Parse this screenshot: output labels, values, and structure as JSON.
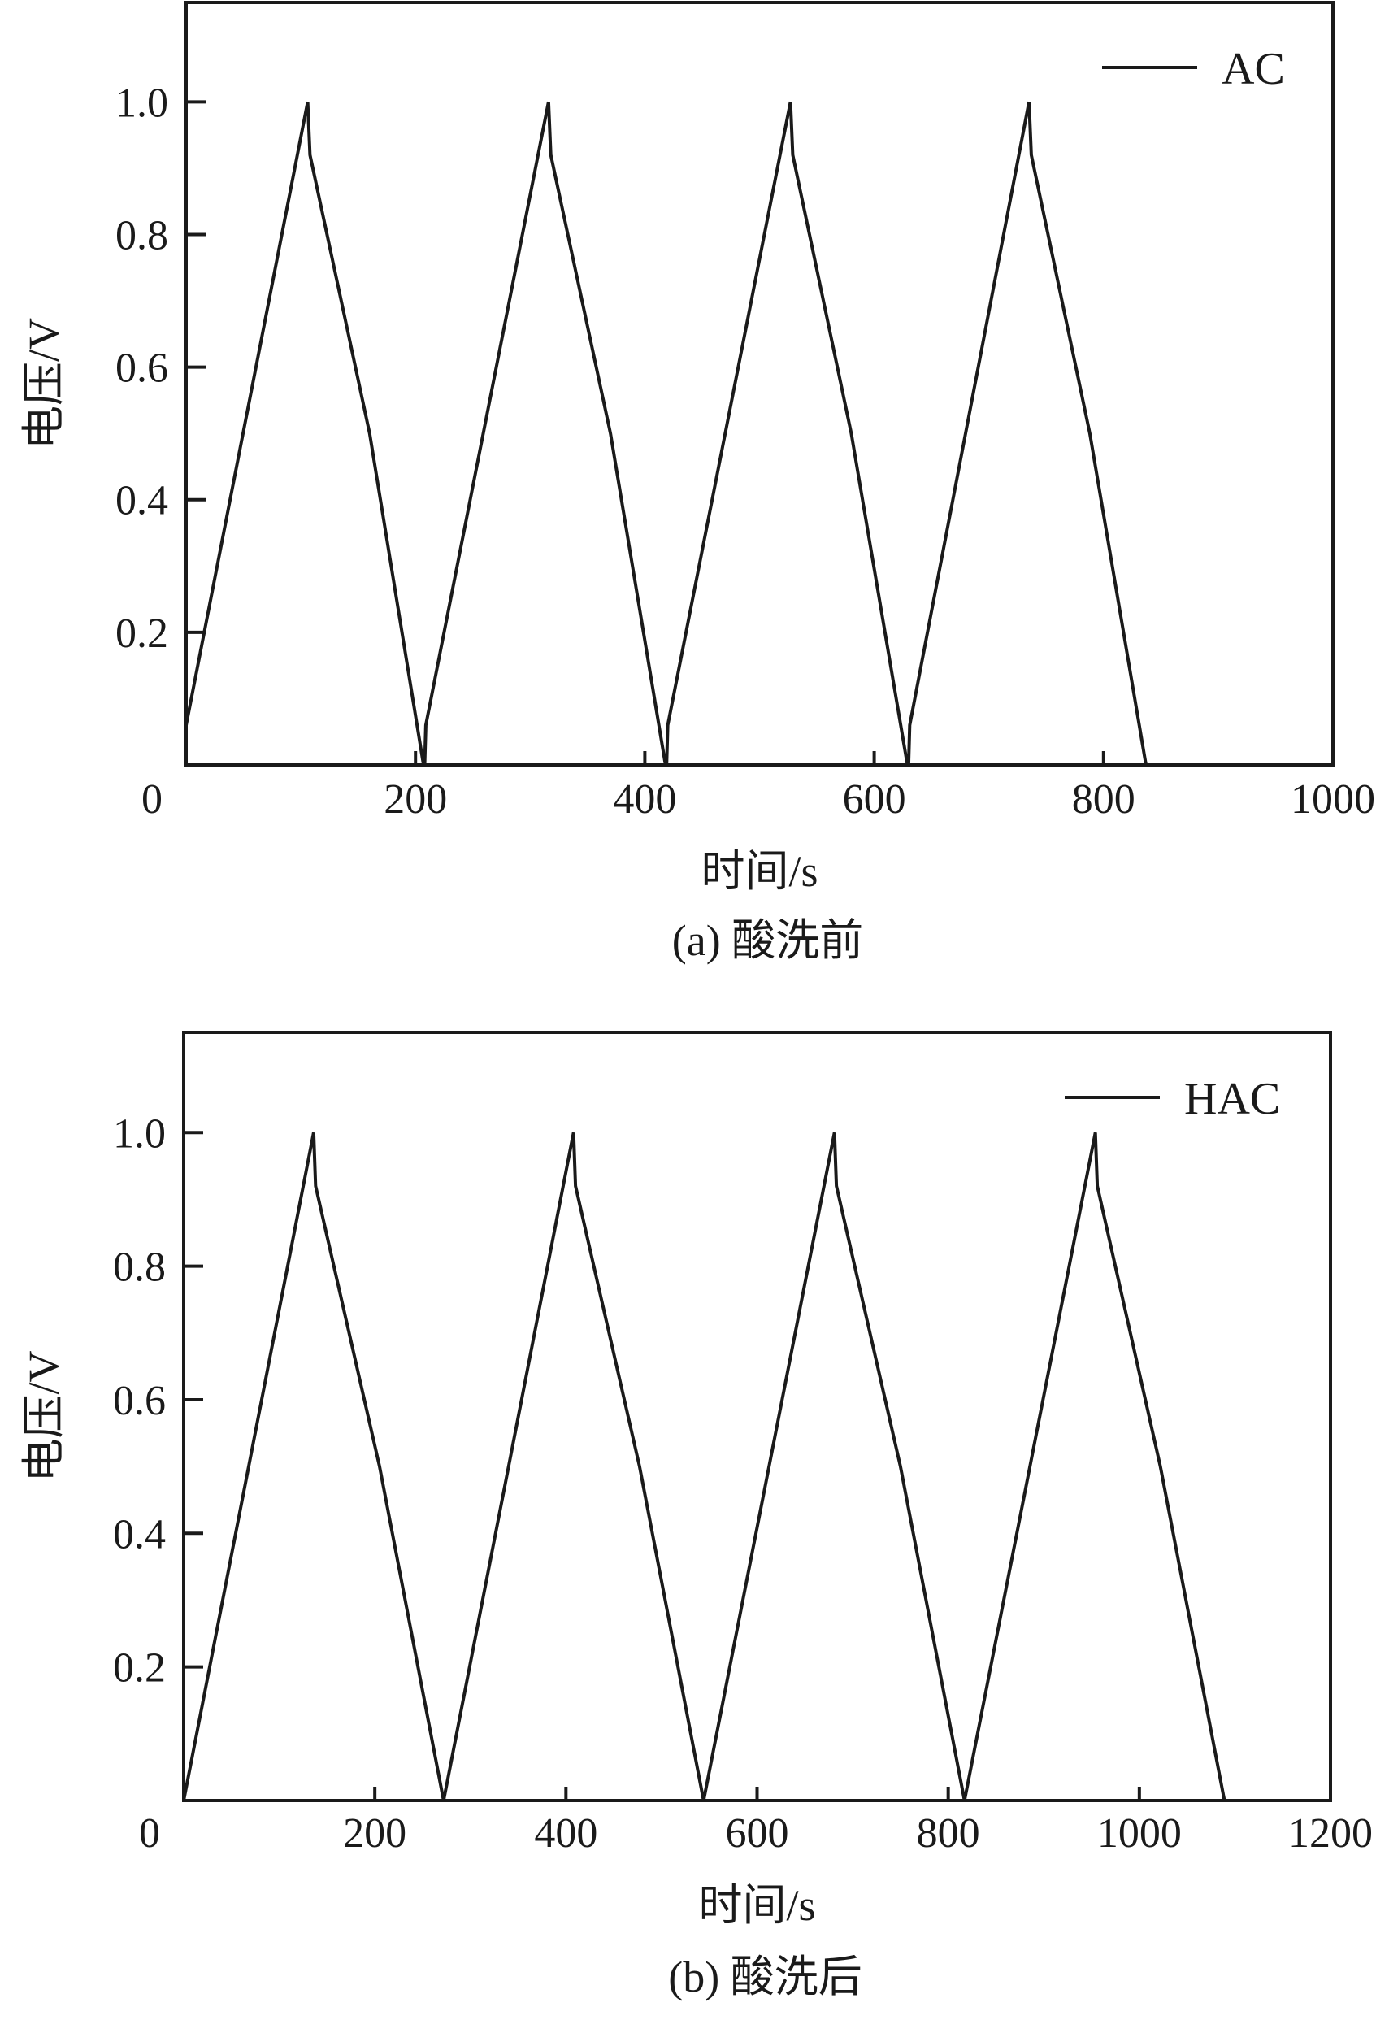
{
  "chart_data": [
    {
      "type": "line",
      "title": "",
      "caption": "(a) 酸洗前",
      "xlabel": "时间/s",
      "ylabel": "电压/V",
      "xlim": [
        0,
        1000
      ],
      "ylim": [
        0,
        1.15
      ],
      "xticks": [
        0,
        200,
        400,
        600,
        800,
        1000
      ],
      "xtick_labels": [
        "0",
        "200",
        "400",
        "600",
        "800",
        "1000"
      ],
      "yticks": [
        0.2,
        0.4,
        0.6,
        0.8,
        1.0
      ],
      "ytick_labels": [
        "0.2",
        "0.4",
        "0.6",
        "0.8",
        "1.0"
      ],
      "grid": false,
      "legend_position": "top-right",
      "series": [
        {
          "name": "AC",
          "color": "#1a1a1a",
          "x": [
            0,
            106,
            108,
            160,
            207,
            208,
            209,
            316,
            318,
            370,
            418,
            419,
            420,
            527,
            529,
            580,
            629,
            630,
            631,
            735,
            737,
            788,
            837
          ],
          "y": [
            0.06,
            1.0,
            0.92,
            0.5,
            0.0,
            0.0,
            0.06,
            1.0,
            0.92,
            0.5,
            0.0,
            0.0,
            0.06,
            1.0,
            0.92,
            0.5,
            0.0,
            0.0,
            0.06,
            1.0,
            0.92,
            0.5,
            0.0
          ]
        }
      ]
    },
    {
      "type": "line",
      "title": "",
      "caption": "(b) 酸洗后",
      "xlabel": "时间/s",
      "ylabel": "电压/V",
      "xlim": [
        0,
        1200
      ],
      "ylim": [
        0,
        1.15
      ],
      "xticks": [
        0,
        200,
        400,
        600,
        800,
        1000,
        1200
      ],
      "xtick_labels": [
        "0",
        "200",
        "400",
        "600",
        "800",
        "1000",
        "1200"
      ],
      "yticks": [
        0.2,
        0.4,
        0.6,
        0.8,
        1.0
      ],
      "ytick_labels": [
        "0.2",
        "0.4",
        "0.6",
        "0.8",
        "1.0"
      ],
      "grid": false,
      "legend_position": "top-right",
      "series": [
        {
          "name": "HAC",
          "color": "#1a1a1a",
          "x": [
            0,
            136,
            138,
            205,
            272,
            408,
            410,
            477,
            544,
            681,
            683,
            750,
            817,
            954,
            956,
            1022,
            1089
          ],
          "y": [
            0.0,
            1.0,
            0.92,
            0.5,
            0.0,
            1.0,
            0.92,
            0.5,
            0.0,
            1.0,
            0.92,
            0.5,
            0.0,
            1.0,
            0.92,
            0.5,
            0.0
          ]
        }
      ]
    }
  ]
}
